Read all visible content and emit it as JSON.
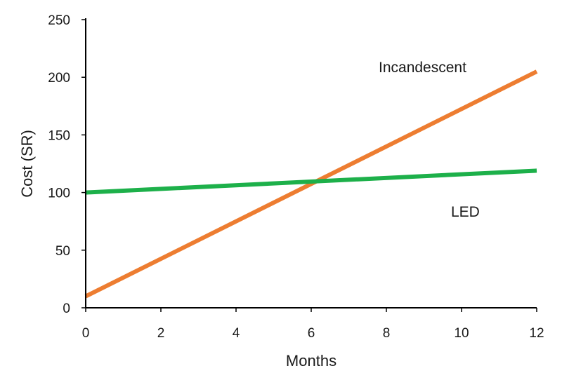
{
  "chart_data": {
    "type": "line",
    "xlabel": "Months",
    "ylabel": "Cost (SR)",
    "xlim": [
      0,
      12
    ],
    "ylim": [
      0,
      250
    ],
    "x_ticks": [
      "0",
      "2",
      "4",
      "6",
      "8",
      "10",
      "12"
    ],
    "y_ticks": [
      "0",
      "50",
      "100",
      "150",
      "200",
      "250"
    ],
    "grid": false,
    "legend": "none",
    "series": [
      {
        "name": "Incandescent",
        "color": "#ED7D31",
        "x": [
          0,
          12
        ],
        "y": [
          10,
          205
        ]
      },
      {
        "name": "LED",
        "color": "#1DB04A",
        "x": [
          0,
          12
        ],
        "y": [
          100,
          119
        ]
      }
    ]
  }
}
